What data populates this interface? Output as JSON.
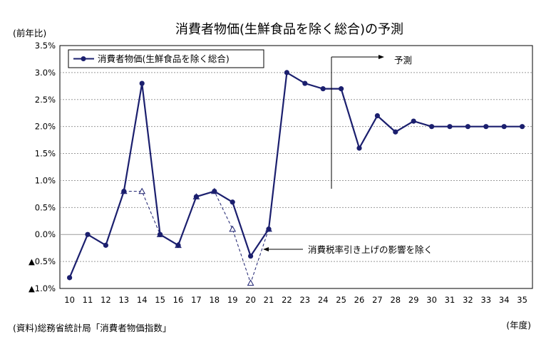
{
  "chart_data": {
    "type": "line",
    "title": "消費者物価(生鮮食品を除く総合)の予測",
    "ylabel": "(前年比)",
    "xlabel": "(年度)",
    "source": "(資料)総務省統計局「消費者物価指数」",
    "x": [
      10,
      11,
      12,
      13,
      14,
      15,
      16,
      17,
      18,
      19,
      20,
      21,
      22,
      23,
      24,
      25,
      26,
      27,
      28,
      29,
      30,
      31,
      32,
      33,
      34,
      35
    ],
    "x_tick_labels": [
      "10",
      "11",
      "12",
      "13",
      "14",
      "15",
      "16",
      "17",
      "18",
      "19",
      "20",
      "21",
      "22",
      "23",
      "24",
      "25",
      "26",
      "27",
      "28",
      "29",
      "30",
      "31",
      "32",
      "33",
      "34",
      "35"
    ],
    "ylim": [
      -1.0,
      3.5
    ],
    "y_ticks": [
      3.5,
      3.0,
      2.5,
      2.0,
      1.5,
      1.0,
      0.5,
      0.0,
      -0.5,
      -1.0
    ],
    "y_tick_labels": [
      "3.5%",
      "3.0%",
      "2.5%",
      "2.0%",
      "1.5%",
      "1.0%",
      "0.5%",
      "0.0%",
      "▲0.5%",
      "▲1.0%"
    ],
    "grid": true,
    "legend_position": "top-left",
    "series": [
      {
        "name": "消費者物価(生鮮食品を除く総合)",
        "style": "solid",
        "marker": "filled-circle",
        "color": "#1b1f6e",
        "values": [
          -0.8,
          0.0,
          -0.2,
          0.8,
          2.8,
          0.0,
          -0.2,
          0.7,
          0.8,
          0.6,
          -0.4,
          0.1,
          3.0,
          2.8,
          2.7,
          2.7,
          1.6,
          2.2,
          1.9,
          2.1,
          2.0,
          2.0,
          2.0,
          2.0,
          2.0,
          2.0
        ]
      },
      {
        "style": "dashed",
        "marker": "open-triangle",
        "color": "#1b1f6e",
        "x": [
          13,
          14,
          15,
          16,
          17,
          18,
          19,
          20,
          21
        ],
        "values": [
          0.8,
          0.8,
          0.0,
          -0.2,
          0.7,
          0.8,
          0.1,
          -0.9,
          0.1
        ]
      }
    ],
    "annotations": [
      {
        "text": "予測",
        "x": 24.5
      },
      {
        "text": "消費税率引き上げの影響を除く",
        "x": 21
      }
    ]
  }
}
